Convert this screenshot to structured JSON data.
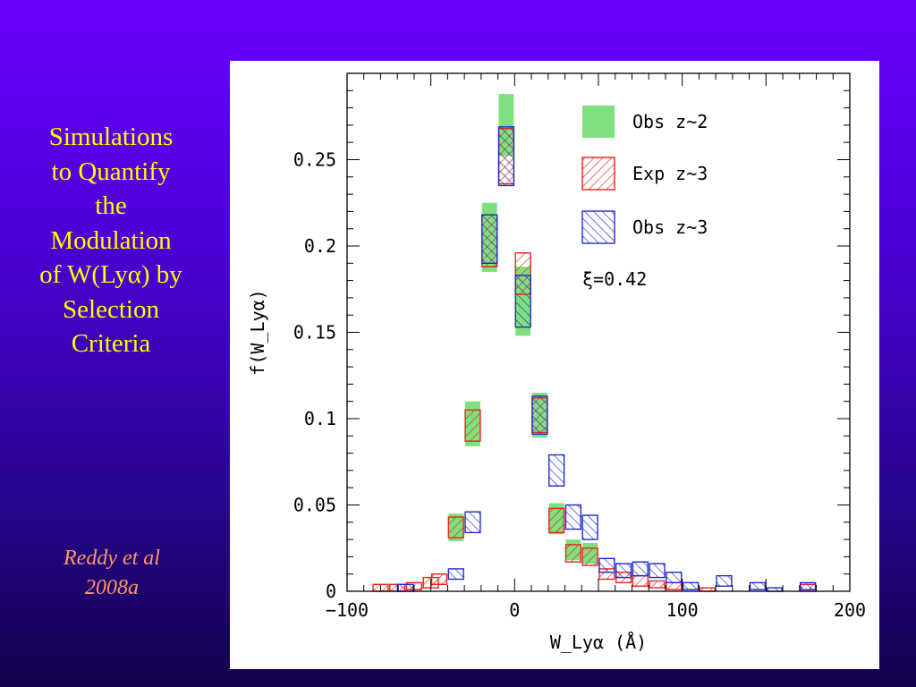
{
  "slide": {
    "title_lines": [
      "Simulations",
      "to Quantify",
      "the",
      "Modulation",
      "of W(Lyα) by",
      "Selection",
      "Criteria"
    ],
    "citation_lines": [
      "Reddy et al",
      "2008a"
    ]
  },
  "colors": {
    "background_top": "#6a00ff",
    "background_bottom": "#12024a",
    "title": "#ffff00",
    "citation": "#ff9966",
    "obs_z2": "#7ee07e",
    "exp_z3": "#e8241a",
    "obs_z3": "#1f2ad0"
  },
  "chart_data": {
    "type": "bar",
    "xlabel": "W_Lyα (Å)",
    "ylabel": "f(W_Lyα)",
    "xlim": [
      -100,
      200
    ],
    "ylim": [
      0,
      0.3
    ],
    "x_ticks": [
      -100,
      0,
      100,
      200
    ],
    "x_tick_labels": [
      "−100",
      "0",
      "100",
      "200"
    ],
    "y_ticks": [
      0,
      0.05,
      0.1,
      0.15,
      0.2,
      0.25
    ],
    "y_tick_labels": [
      "0",
      "0.05",
      "0.1",
      "0.15",
      "0.2",
      "0.25"
    ],
    "annotation": "ξ=0.42",
    "legend_position": "top-right",
    "grid": false,
    "series": [
      {
        "name": "Obs z~2",
        "style": "solid-fill",
        "color": "#7ee07e",
        "points": [
          {
            "x": -35,
            "y": 0.037,
            "err": 0.008
          },
          {
            "x": -25,
            "y": 0.097,
            "err": 0.013
          },
          {
            "x": -15,
            "y": 0.205,
            "err": 0.02
          },
          {
            "x": -5,
            "y": 0.27,
            "err": 0.018
          },
          {
            "x": 5,
            "y": 0.168,
            "err": 0.02
          },
          {
            "x": 15,
            "y": 0.102,
            "err": 0.013
          },
          {
            "x": 25,
            "y": 0.042,
            "err": 0.009
          },
          {
            "x": 35,
            "y": 0.024,
            "err": 0.006
          },
          {
            "x": 45,
            "y": 0.022,
            "err": 0.006
          }
        ]
      },
      {
        "name": "Exp z~3",
        "style": "hatch-right",
        "color": "#e8241a",
        "points": [
          {
            "x": -80,
            "y": 0.002,
            "err": 0.002
          },
          {
            "x": -70,
            "y": 0.002,
            "err": 0.002
          },
          {
            "x": -60,
            "y": 0.003,
            "err": 0.002
          },
          {
            "x": -50,
            "y": 0.005,
            "err": 0.003
          },
          {
            "x": -45,
            "y": 0.007,
            "err": 0.003
          },
          {
            "x": -35,
            "y": 0.037,
            "err": 0.006
          },
          {
            "x": -25,
            "y": 0.096,
            "err": 0.009
          },
          {
            "x": -15,
            "y": 0.203,
            "err": 0.015
          },
          {
            "x": -5,
            "y": 0.252,
            "err": 0.016
          },
          {
            "x": 5,
            "y": 0.184,
            "err": 0.012
          },
          {
            "x": 15,
            "y": 0.102,
            "err": 0.01
          },
          {
            "x": 25,
            "y": 0.041,
            "err": 0.007
          },
          {
            "x": 35,
            "y": 0.022,
            "err": 0.005
          },
          {
            "x": 45,
            "y": 0.02,
            "err": 0.005
          },
          {
            "x": 55,
            "y": 0.01,
            "err": 0.003
          },
          {
            "x": 65,
            "y": 0.008,
            "err": 0.003
          },
          {
            "x": 75,
            "y": 0.006,
            "err": 0.003
          },
          {
            "x": 85,
            "y": 0.004,
            "err": 0.002
          },
          {
            "x": 95,
            "y": 0.003,
            "err": 0.002
          },
          {
            "x": 115,
            "y": 0.001,
            "err": 0.001
          },
          {
            "x": 175,
            "y": 0.002,
            "err": 0.002
          }
        ]
      },
      {
        "name": "Obs z~3",
        "style": "hatch-left",
        "color": "#1f2ad0",
        "points": [
          {
            "x": -65,
            "y": 0.002,
            "err": 0.002
          },
          {
            "x": -35,
            "y": 0.01,
            "err": 0.003
          },
          {
            "x": -25,
            "y": 0.04,
            "err": 0.006
          },
          {
            "x": -15,
            "y": 0.204,
            "err": 0.014
          },
          {
            "x": -5,
            "y": 0.252,
            "err": 0.017
          },
          {
            "x": 5,
            "y": 0.168,
            "err": 0.015
          },
          {
            "x": 15,
            "y": 0.102,
            "err": 0.011
          },
          {
            "x": 25,
            "y": 0.07,
            "err": 0.009
          },
          {
            "x": 35,
            "y": 0.043,
            "err": 0.007
          },
          {
            "x": 45,
            "y": 0.037,
            "err": 0.007
          },
          {
            "x": 55,
            "y": 0.015,
            "err": 0.004
          },
          {
            "x": 65,
            "y": 0.012,
            "err": 0.004
          },
          {
            "x": 75,
            "y": 0.013,
            "err": 0.004
          },
          {
            "x": 85,
            "y": 0.012,
            "err": 0.004
          },
          {
            "x": 95,
            "y": 0.008,
            "err": 0.003
          },
          {
            "x": 105,
            "y": 0.003,
            "err": 0.002
          },
          {
            "x": 125,
            "y": 0.006,
            "err": 0.003
          },
          {
            "x": 145,
            "y": 0.003,
            "err": 0.002
          },
          {
            "x": 155,
            "y": 0.001,
            "err": 0.001
          },
          {
            "x": 175,
            "y": 0.003,
            "err": 0.002
          }
        ]
      }
    ]
  }
}
